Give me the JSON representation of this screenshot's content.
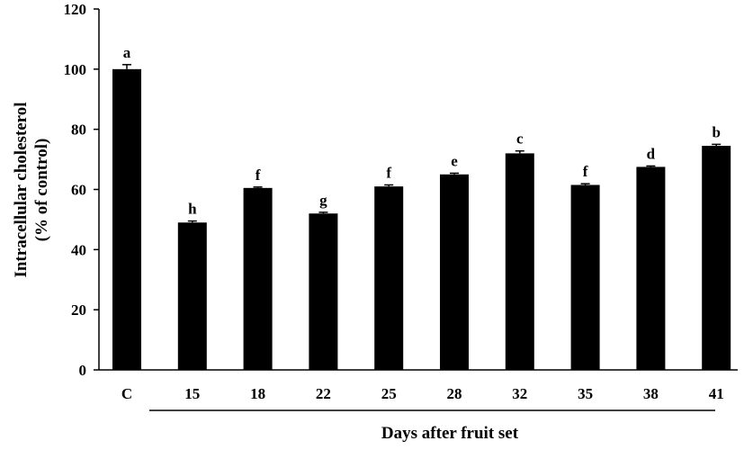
{
  "chart_data": {
    "type": "bar",
    "categories": [
      "C",
      "15",
      "18",
      "22",
      "25",
      "28",
      "32",
      "35",
      "38",
      "41"
    ],
    "values": [
      100,
      49,
      60.5,
      52,
      61,
      65,
      72,
      61.5,
      67.5,
      74.5
    ],
    "errors": [
      1.5,
      0.5,
      0.3,
      0.4,
      0.5,
      0.4,
      0.8,
      0.4,
      0.3,
      0.5
    ],
    "significance": [
      "a",
      "h",
      "f",
      "g",
      "f",
      "e",
      "c",
      "f",
      "d",
      "b"
    ],
    "title": "",
    "xlabel": "Days after fruit set",
    "ylabel_lines": [
      "Intracellular cholesterol",
      "(% of control)"
    ],
    "ylim": [
      0,
      120
    ],
    "yticks": [
      0,
      20,
      40,
      60,
      80,
      100,
      120
    ],
    "grid": false,
    "bar_color": "#000000"
  }
}
